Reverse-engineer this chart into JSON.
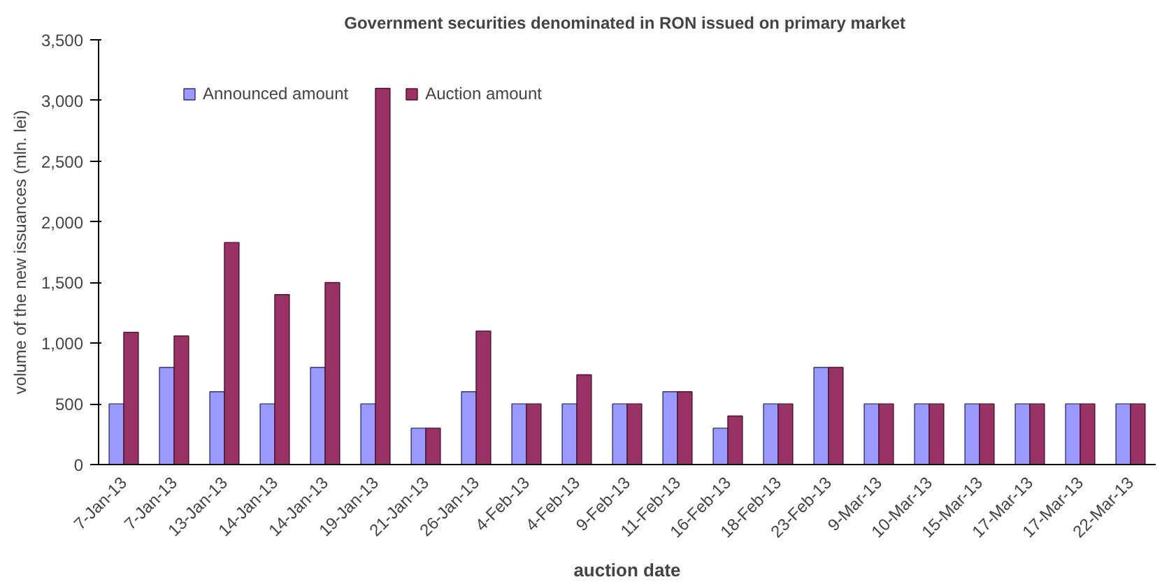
{
  "chart_data": {
    "type": "bar",
    "title": "Government securities denominated in RON issued  on primary market",
    "xlabel": "auction date",
    "ylabel": "volume of the new issuances (mln. lei)",
    "categories": [
      "7-Jan-13",
      "7-Jan-13",
      "13-Jan-13",
      "14-Jan-13",
      "14-Jan-13",
      "19-Jan-13",
      "21-Jan-13",
      "26-Jan-13",
      "4-Feb-13",
      "4-Feb-13",
      "9-Feb-13",
      "11-Feb-13",
      "16-Feb-13",
      "18-Feb-13",
      "23-Feb-13",
      "9-Mar-13",
      "10-Mar-13",
      "15-Mar-13",
      "17-Mar-13",
      "17-Mar-13",
      "22-Mar-13"
    ],
    "series": [
      {
        "name": "Announced amount",
        "color": "#9999ff",
        "values": [
          500,
          800,
          600,
          500,
          800,
          500,
          300,
          600,
          500,
          500,
          500,
          600,
          300,
          500,
          800,
          500,
          500,
          500,
          500,
          500,
          500
        ]
      },
      {
        "name": "Auction amount",
        "color": "#993366",
        "values": [
          1090,
          1060,
          1830,
          1400,
          1500,
          3100,
          300,
          1100,
          500,
          740,
          500,
          600,
          400,
          500,
          800,
          500,
          500,
          500,
          500,
          500,
          500
        ]
      }
    ],
    "ylim": [
      0,
      3500
    ],
    "yticks": [
      {
        "value": 0,
        "label": "0"
      },
      {
        "value": 500,
        "label": "500"
      },
      {
        "value": 1000,
        "label": "1,000"
      },
      {
        "value": 1500,
        "label": "1,500"
      },
      {
        "value": 2000,
        "label": "2,000"
      },
      {
        "value": 2500,
        "label": "2,500"
      },
      {
        "value": 3000,
        "label": "3,000"
      },
      {
        "value": 3500,
        "label": "3,500"
      }
    ],
    "grid": false,
    "legend": "top left"
  }
}
